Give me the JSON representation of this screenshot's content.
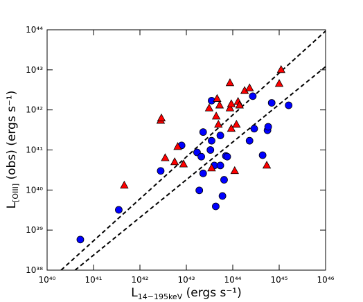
{
  "chart_data": {
    "type": "scatter",
    "xlabel": {
      "main": "L",
      "sub": "14−195keV",
      "rest": " (ergs s⁻¹)"
    },
    "ylabel": {
      "main": "L",
      "sub": "[OIII]",
      "rest": " (obs) (ergs s⁻¹)"
    },
    "xscale": "log",
    "yscale": "log",
    "xlim": [
      1e+40,
      1e+46
    ],
    "ylim": [
      1e+38,
      1e+44
    ],
    "xticks": [
      {
        "value": 1e+40,
        "label": "10⁴⁰"
      },
      {
        "value": 1e+41,
        "label": "10⁴¹"
      },
      {
        "value": 1e+42,
        "label": "10⁴²"
      },
      {
        "value": 1e+43,
        "label": "10⁴³"
      },
      {
        "value": 1e+44,
        "label": "10⁴⁴"
      },
      {
        "value": 1e+45,
        "label": "10⁴⁵"
      },
      {
        "value": 1e+46,
        "label": "10⁴⁶"
      }
    ],
    "yticks": [
      {
        "value": 1e+38,
        "label": "10³⁸"
      },
      {
        "value": 1e+39,
        "label": "10³⁹"
      },
      {
        "value": 1e+40,
        "label": "10⁴⁰"
      },
      {
        "value": 1e+41,
        "label": "10⁴¹"
      },
      {
        "value": 1e+42,
        "label": "10⁴²"
      },
      {
        "value": 1e+43,
        "label": "10⁴³"
      },
      {
        "value": 1e+44,
        "label": "10⁴⁴"
      }
    ],
    "grid": false,
    "lines": [
      {
        "color": "#000000",
        "dash": true,
        "x": [
          2e+40,
          1e+46
        ],
        "values": [
          1e+38,
          9.3e+43
        ]
      },
      {
        "color": "#000000",
        "dash": true,
        "x": [
          4e+40,
          1e+46
        ],
        "values": [
          1e+38,
          1.2e+43
        ]
      }
    ],
    "series": [
      {
        "marker": "circle",
        "color": "#0000ff",
        "x": [
          5.2e+40,
          3.5e+41,
          2.8e+42,
          7.9e+42,
          1.7e+43,
          1.9e+43,
          2.1e+43,
          2.3e+43,
          2.3e+43,
          3.5e+43,
          3.5e+43,
          3.3e+43,
          4e+43,
          4.3e+43,
          5.4e+43,
          5.4e+43,
          6e+43,
          6.5e+43,
          7.1e+43,
          7.6e+43,
          2.3e+44,
          2.7e+44,
          2.9e+44,
          4.4e+44,
          5.6e+44,
          5.8e+44,
          6.9e+44,
          1.6e+45
        ],
        "values": [
          5.8e+38,
          3.2e+39,
          3e+40,
          1.3e+41,
          8.7e+40,
          9.8e+39,
          6.8e+40,
          2.8e+41,
          2.6e+40,
          1.7e+42,
          1.7e+41,
          1e+41,
          4.1e+40,
          3.9e+39,
          2.3e+41,
          4.1e+40,
          7.1e+39,
          1.8e+40,
          7.1e+40,
          6.8e+40,
          1.7e+41,
          2.2e+42,
          3.4e+41,
          7.4e+40,
          3.1e+41,
          3.8e+41,
          1.5e+42,
          1.3e+42
        ]
      },
      {
        "marker": "triangle",
        "color": "#ff0000",
        "x": [
          4.6e+41,
          3.5e+42,
          2.8e+42,
          2.9e+42,
          5.6e+42,
          6.5e+42,
          8.7e+42,
          3.1e+43,
          3.5e+43,
          4.4e+43,
          4.6e+43,
          4.9e+43,
          5.2e+43,
          8.7e+43,
          8.7e+43,
          9.3e+43,
          9.3e+43,
          1.1e+44,
          1.2e+44,
          1.3e+44,
          1.4e+44,
          1.8e+44,
          2.3e+44,
          5.4e+44,
          1e+45,
          1.1e+45
        ],
        "values": [
          1.3e+40,
          6.3e+40,
          5.4e+41,
          6.2e+41,
          5e+40,
          1.2e+41,
          4.4e+40,
          1.1e+42,
          3.5e+40,
          6.9e+41,
          1.9e+42,
          4.3e+41,
          1.3e+42,
          4.7e+42,
          1.1e+42,
          1.4e+42,
          3.4e+41,
          3e+40,
          4.3e+41,
          1.6e+42,
          1.3e+42,
          3e+42,
          3.5e+42,
          4.1e+40,
          4.5e+42,
          1e+43
        ]
      }
    ]
  }
}
